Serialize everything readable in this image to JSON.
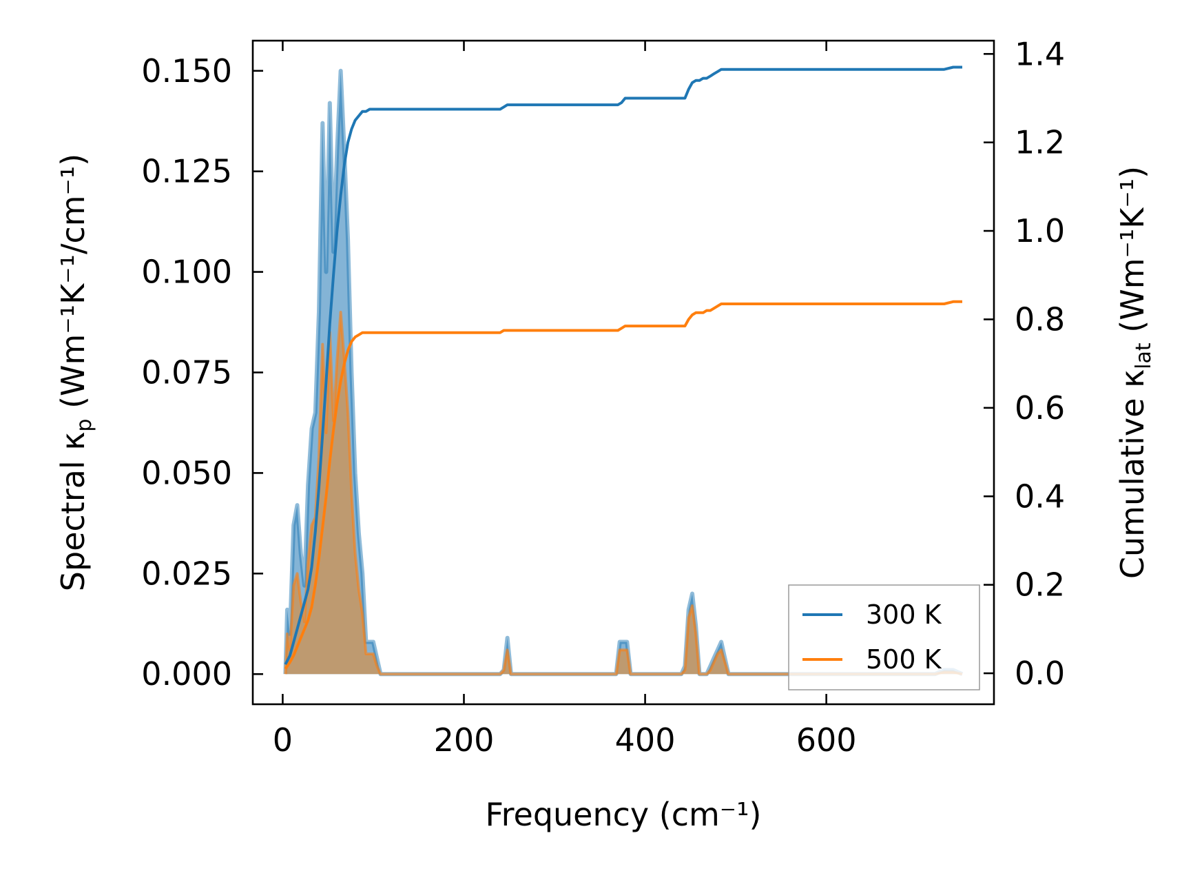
{
  "chart_data": {
    "type": "line",
    "xlabel": "Frequency (cm⁻¹)",
    "ylabel_left": {
      "prefix": "Spectral κ",
      "subscript": "p",
      "unit": " (Wm⁻¹K⁻¹/cm⁻¹)"
    },
    "ylabel_right": {
      "prefix": "Cumulative κ",
      "subscript": "lat",
      "unit": " (Wm⁻¹K⁻¹)"
    },
    "xlim": [
      -33,
      785
    ],
    "ylim_left": [
      -0.0075,
      0.1575
    ],
    "ylim_right": [
      -0.07,
      1.43
    ],
    "x_ticks": [
      0,
      200,
      400,
      600
    ],
    "x_tick_labels": [
      "0",
      "200",
      "400",
      "600"
    ],
    "y_left_ticks": [
      0.0,
      0.025,
      0.05,
      0.075,
      0.1,
      0.125,
      0.15
    ],
    "y_left_tick_labels": [
      "0.000",
      "0.025",
      "0.050",
      "0.075",
      "0.100",
      "0.125",
      "0.150"
    ],
    "y_right_ticks": [
      0.0,
      0.2,
      0.4,
      0.6,
      0.8,
      1.0,
      1.2,
      1.4
    ],
    "y_right_tick_labels": [
      "0.0",
      "0.2",
      "0.4",
      "0.6",
      "0.8",
      "1.0",
      "1.2",
      "1.4"
    ],
    "legend_position": "lower-right",
    "series": [
      {
        "name": "300 K",
        "color": "#1f77b4",
        "spectral_x": [
          3,
          5,
          8,
          12,
          16,
          20,
          24,
          28,
          32,
          36,
          40,
          44,
          48,
          52,
          56,
          60,
          64,
          68,
          72,
          76,
          80,
          84,
          88,
          92,
          96,
          100,
          104,
          108,
          120,
          240,
          244,
          248,
          252,
          256,
          260,
          368,
          372,
          376,
          380,
          384,
          388,
          440,
          444,
          448,
          452,
          456,
          460,
          464,
          468,
          472,
          476,
          480,
          484,
          488,
          492,
          496,
          700,
          720,
          730,
          740,
          750
        ],
        "spectral_y": [
          0.0,
          0.016,
          0.01,
          0.037,
          0.042,
          0.03,
          0.022,
          0.047,
          0.061,
          0.065,
          0.09,
          0.137,
          0.1,
          0.142,
          0.105,
          0.13,
          0.15,
          0.13,
          0.108,
          0.075,
          0.05,
          0.035,
          0.025,
          0.008,
          0.008,
          0.008,
          0.004,
          0.0,
          0.0,
          0.0,
          0.001,
          0.009,
          0.0,
          0.0,
          0.0,
          0.0,
          0.008,
          0.008,
          0.008,
          0.0,
          0.0,
          0.0,
          0.002,
          0.016,
          0.02,
          0.012,
          0.0,
          0.0,
          0.0,
          0.002,
          0.004,
          0.006,
          0.008,
          0.004,
          0.0,
          0.0,
          0.0,
          0.0,
          0.001,
          0.001,
          0.0
        ],
        "cumulative_x": [
          3,
          8,
          12,
          16,
          20,
          24,
          28,
          32,
          36,
          40,
          44,
          48,
          52,
          56,
          60,
          64,
          68,
          72,
          76,
          80,
          84,
          88,
          92,
          96,
          100,
          104,
          108,
          240,
          244,
          248,
          252,
          370,
          374,
          378,
          382,
          386,
          444,
          448,
          452,
          456,
          460,
          464,
          468,
          472,
          476,
          480,
          484,
          488,
          492,
          700,
          720,
          730,
          740,
          750
        ],
        "cumulative_y": [
          0.02,
          0.04,
          0.07,
          0.1,
          0.13,
          0.16,
          0.19,
          0.24,
          0.32,
          0.42,
          0.54,
          0.66,
          0.79,
          0.9,
          1.0,
          1.08,
          1.15,
          1.2,
          1.23,
          1.25,
          1.26,
          1.27,
          1.27,
          1.275,
          1.275,
          1.275,
          1.275,
          1.275,
          1.28,
          1.285,
          1.285,
          1.285,
          1.29,
          1.3,
          1.3,
          1.3,
          1.3,
          1.32,
          1.335,
          1.34,
          1.34,
          1.345,
          1.345,
          1.35,
          1.355,
          1.36,
          1.365,
          1.365,
          1.365,
          1.365,
          1.365,
          1.365,
          1.37,
          1.37
        ]
      },
      {
        "name": "500 K",
        "color": "#ff7f0e",
        "spectral_x": [
          3,
          5,
          8,
          12,
          16,
          20,
          24,
          28,
          32,
          36,
          40,
          44,
          48,
          52,
          56,
          60,
          64,
          68,
          72,
          76,
          80,
          84,
          88,
          92,
          96,
          100,
          104,
          108,
          120,
          240,
          244,
          248,
          252,
          256,
          260,
          368,
          372,
          376,
          380,
          384,
          388,
          440,
          444,
          448,
          452,
          456,
          460,
          464,
          468,
          472,
          476,
          480,
          484,
          488,
          492,
          496,
          700,
          720,
          730,
          740,
          750
        ],
        "spectral_y": [
          0.0,
          0.01,
          0.006,
          0.022,
          0.025,
          0.018,
          0.013,
          0.028,
          0.037,
          0.039,
          0.054,
          0.082,
          0.06,
          0.085,
          0.063,
          0.078,
          0.09,
          0.078,
          0.065,
          0.045,
          0.03,
          0.021,
          0.015,
          0.005,
          0.005,
          0.005,
          0.002,
          0.0,
          0.0,
          0.0,
          0.001,
          0.006,
          0.0,
          0.0,
          0.0,
          0.0,
          0.006,
          0.006,
          0.006,
          0.0,
          0.0,
          0.0,
          0.001,
          0.014,
          0.017,
          0.01,
          0.0,
          0.0,
          0.0,
          0.001,
          0.003,
          0.005,
          0.006,
          0.003,
          0.0,
          0.0,
          0.0,
          0.0,
          0.0005,
          0.0005,
          0.0
        ],
        "cumulative_x": [
          3,
          8,
          12,
          16,
          20,
          24,
          28,
          32,
          36,
          40,
          44,
          48,
          52,
          56,
          60,
          64,
          68,
          72,
          76,
          80,
          84,
          88,
          92,
          96,
          100,
          104,
          108,
          240,
          244,
          248,
          252,
          370,
          374,
          378,
          382,
          386,
          444,
          448,
          452,
          456,
          460,
          464,
          468,
          472,
          476,
          480,
          484,
          488,
          492,
          700,
          720,
          730,
          740,
          750
        ],
        "cumulative_y": [
          0.01,
          0.025,
          0.04,
          0.06,
          0.08,
          0.1,
          0.12,
          0.15,
          0.2,
          0.26,
          0.33,
          0.4,
          0.48,
          0.55,
          0.61,
          0.66,
          0.7,
          0.73,
          0.75,
          0.76,
          0.765,
          0.77,
          0.77,
          0.77,
          0.77,
          0.77,
          0.77,
          0.77,
          0.775,
          0.775,
          0.775,
          0.775,
          0.78,
          0.785,
          0.785,
          0.785,
          0.785,
          0.8,
          0.81,
          0.815,
          0.815,
          0.815,
          0.82,
          0.82,
          0.825,
          0.83,
          0.835,
          0.835,
          0.835,
          0.835,
          0.835,
          0.835,
          0.84,
          0.84
        ]
      }
    ]
  }
}
